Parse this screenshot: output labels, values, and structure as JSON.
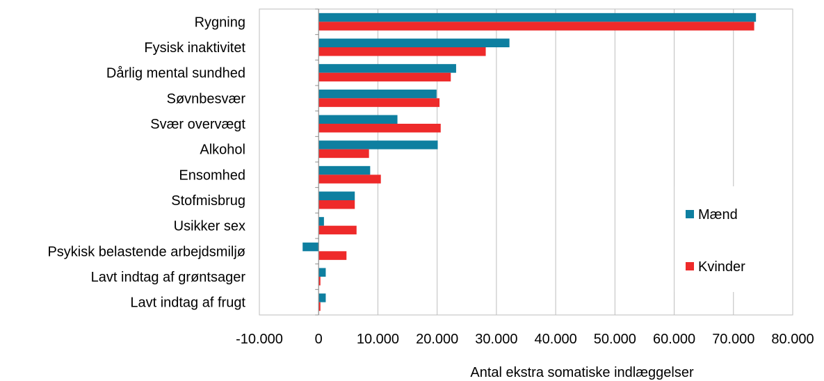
{
  "chart_data": {
    "type": "bar",
    "orientation": "horizontal",
    "categories": [
      "Rygning",
      "Fysisk inaktivitet",
      "Dårlig mental sundhed",
      "Søvnbesvær",
      "Svær overvægt",
      "Alkohol",
      "Ensomhed",
      "Stofmisbrug",
      "Usikker sex",
      "Psykisk belastende arbejdsmiljø",
      "Lavt indtag af grøntsager",
      "Lavt indtag af frugt"
    ],
    "series": [
      {
        "name": "Mænd",
        "color": "#0e7fa0",
        "values": [
          73800,
          32200,
          23200,
          19900,
          13300,
          20100,
          8700,
          6100,
          900,
          -2700,
          1200,
          1200
        ]
      },
      {
        "name": "Kvinder",
        "color": "#ee2a2a",
        "values": [
          73500,
          28200,
          22300,
          20400,
          20600,
          8500,
          10500,
          6100,
          6400,
          4700,
          300,
          300
        ]
      }
    ],
    "xlabel": "Antal ekstra somatiske indlæggelser",
    "xlim": [
      -10000,
      80000
    ],
    "xticks": [
      -10000,
      0,
      10000,
      20000,
      30000,
      40000,
      50000,
      60000,
      70000,
      80000
    ],
    "xtick_labels": [
      "-10.000",
      "0",
      "10.000",
      "20.000",
      "30.000",
      "40.000",
      "50.000",
      "60.000",
      "70.000",
      "80.000"
    ],
    "grid": "vertical",
    "legend_position": "right"
  }
}
